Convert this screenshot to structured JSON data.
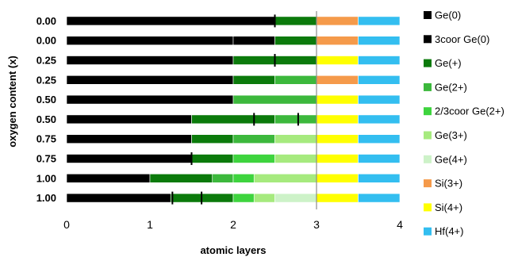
{
  "chart_data": {
    "type": "bar",
    "orientation": "horizontal",
    "stacked": true,
    "title": "",
    "xlabel": "atomic layers",
    "ylabel": "oxygen content (x)",
    "xlim": [
      0,
      4
    ],
    "x_ticks": [
      "0",
      "1",
      "2",
      "3",
      "4"
    ],
    "reference_line_x": 3,
    "grid": false,
    "legend_placement": "right",
    "categories": [
      "0.00",
      "0.00",
      "0.25",
      "0.25",
      "0.50",
      "0.50",
      "0.75",
      "0.75",
      "1.00",
      "1.00"
    ],
    "legend": [
      {
        "name": "Ge(0)",
        "color": "#000000"
      },
      {
        "name": "3coor Ge(0)",
        "color": "#000000"
      },
      {
        "name": "Ge(+)",
        "color": "#0b7a0b"
      },
      {
        "name": "Ge(2+)",
        "color": "#3cb83c"
      },
      {
        "name": "2/3coor Ge(2+)",
        "color": "#3ed43e"
      },
      {
        "name": "Ge(3+)",
        "color": "#a6ea7e"
      },
      {
        "name": "Ge(4+)",
        "color": "#cdf2c8"
      },
      {
        "name": "Si(3+)",
        "color": "#f59a4a"
      },
      {
        "name": "Si(4+)",
        "color": "#ffff00"
      },
      {
        "name": "Hf(4+)",
        "color": "#33bef0"
      }
    ],
    "rows": [
      {
        "label": "0.00",
        "segments": [
          [
            "Ge(0)",
            2.5
          ],
          [
            "Ge(+)",
            0.5
          ],
          [
            "Si(3+)",
            0.5
          ],
          [
            "Hf(4+)",
            0.5
          ]
        ],
        "markers": [
          2.5
        ]
      },
      {
        "label": "0.00",
        "segments": [
          [
            "Ge(0)",
            2.0
          ],
          [
            "3coor Ge(0)",
            0.5
          ],
          [
            "Ge(+)",
            0.5
          ],
          [
            "Si(3+)",
            0.5
          ],
          [
            "Hf(4+)",
            0.5
          ]
        ],
        "markers": []
      },
      {
        "label": "0.25",
        "segments": [
          [
            "Ge(0)",
            2.0
          ],
          [
            "Ge(+)",
            1.0
          ],
          [
            "Si(4+)",
            0.5
          ],
          [
            "Hf(4+)",
            0.5
          ]
        ],
        "markers": [
          2.5
        ]
      },
      {
        "label": "0.25",
        "segments": [
          [
            "Ge(0)",
            2.0
          ],
          [
            "Ge(+)",
            0.5
          ],
          [
            "Ge(2+)",
            0.5
          ],
          [
            "Si(3+)",
            0.5
          ],
          [
            "Hf(4+)",
            0.5
          ]
        ],
        "markers": []
      },
      {
        "label": "0.50",
        "segments": [
          [
            "Ge(0)",
            2.0
          ],
          [
            "Ge(2+)",
            1.0
          ],
          [
            "Si(4+)",
            0.5
          ],
          [
            "Hf(4+)",
            0.5
          ]
        ],
        "markers": []
      },
      {
        "label": "0.50",
        "segments": [
          [
            "Ge(0)",
            1.5
          ],
          [
            "Ge(+)",
            1.0
          ],
          [
            "Ge(2+)",
            0.5
          ],
          [
            "Si(4+)",
            0.5
          ],
          [
            "Hf(4+)",
            0.5
          ]
        ],
        "markers": [
          2.25,
          2.78
        ]
      },
      {
        "label": "0.75",
        "segments": [
          [
            "Ge(0)",
            1.5
          ],
          [
            "Ge(+)",
            0.5
          ],
          [
            "Ge(2+)",
            0.5
          ],
          [
            "Ge(3+)",
            0.5
          ],
          [
            "Si(4+)",
            0.5
          ],
          [
            "Hf(4+)",
            0.5
          ]
        ],
        "markers": []
      },
      {
        "label": "0.75",
        "segments": [
          [
            "Ge(0)",
            1.5
          ],
          [
            "Ge(+)",
            0.5
          ],
          [
            "2/3coor Ge(2+)",
            0.5
          ],
          [
            "Ge(3+)",
            0.5
          ],
          [
            "Si(4+)",
            0.5
          ],
          [
            "Hf(4+)",
            0.5
          ]
        ],
        "markers": [
          1.5
        ]
      },
      {
        "label": "1.00",
        "segments": [
          [
            "Ge(0)",
            1.0
          ],
          [
            "Ge(+)",
            0.75
          ],
          [
            "Ge(2+)",
            0.25
          ],
          [
            "2/3coor Ge(2+)",
            0.25
          ],
          [
            "Ge(3+)",
            0.75
          ],
          [
            "Si(4+)",
            0.5
          ],
          [
            "Hf(4+)",
            0.5
          ]
        ],
        "markers": []
      },
      {
        "label": "1.00",
        "segments": [
          [
            "Ge(0)",
            1.25
          ],
          [
            "Ge(+)",
            0.75
          ],
          [
            "2/3coor Ge(2+)",
            0.25
          ],
          [
            "Ge(3+)",
            0.25
          ],
          [
            "Ge(4+)",
            0.5
          ],
          [
            "Si(4+)",
            0.5
          ],
          [
            "Hf(4+)",
            0.5
          ]
        ],
        "markers": [
          1.27,
          1.62
        ]
      }
    ]
  }
}
